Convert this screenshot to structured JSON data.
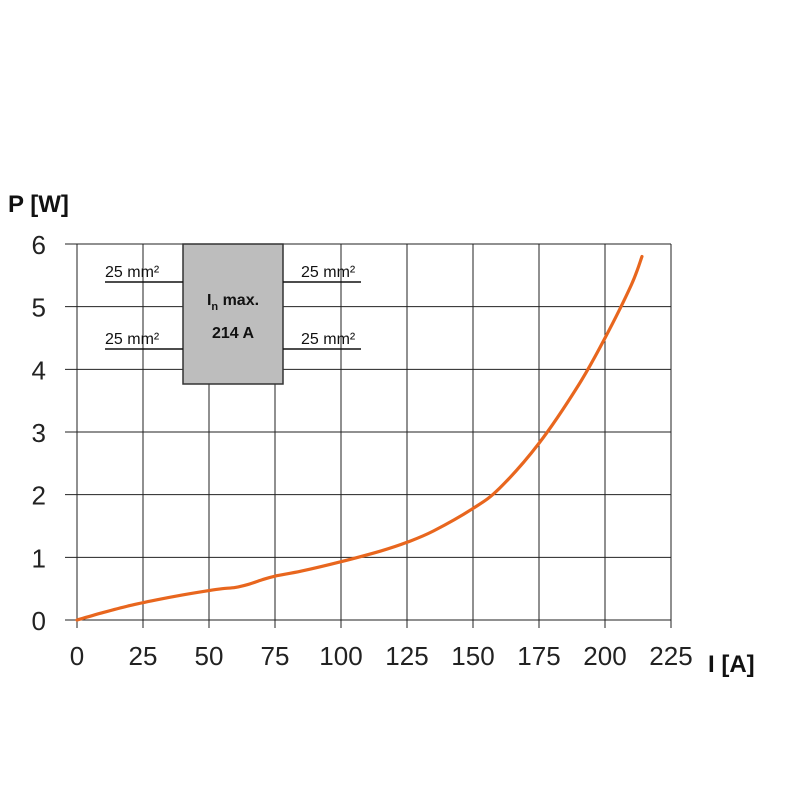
{
  "chart_data": {
    "type": "line",
    "xlabel": "I [A]",
    "ylabel": "P [W]",
    "xlim": [
      0,
      225
    ],
    "ylim": [
      0,
      6
    ],
    "xticks": [
      "0",
      "25",
      "50",
      "75",
      "100",
      "125",
      "150",
      "175",
      "200",
      "225"
    ],
    "yticks": [
      "0",
      "1",
      "2",
      "3",
      "4",
      "5",
      "6"
    ],
    "grid": true,
    "series": [
      {
        "color": "#e8661e",
        "x": [
          0,
          10,
          20,
          30,
          40,
          50,
          55,
          60,
          65,
          70,
          75,
          85,
          100,
          115,
          125,
          135,
          150,
          160,
          175,
          190,
          200,
          210,
          214
        ],
        "y": [
          0,
          0.12,
          0.23,
          0.32,
          0.4,
          0.47,
          0.5,
          0.52,
          0.57,
          0.64,
          0.7,
          0.78,
          0.93,
          1.1,
          1.24,
          1.42,
          1.78,
          2.1,
          2.82,
          3.75,
          4.5,
          5.35,
          5.8
        ]
      }
    ],
    "inset": {
      "current_label": "I",
      "current_subscript": "n",
      "current_suffix": " max.",
      "rating": "214 A",
      "fill": "#bdbdbd",
      "wires": [
        "25 mm²",
        "25 mm²",
        "25 mm²",
        "25 mm²"
      ]
    }
  }
}
